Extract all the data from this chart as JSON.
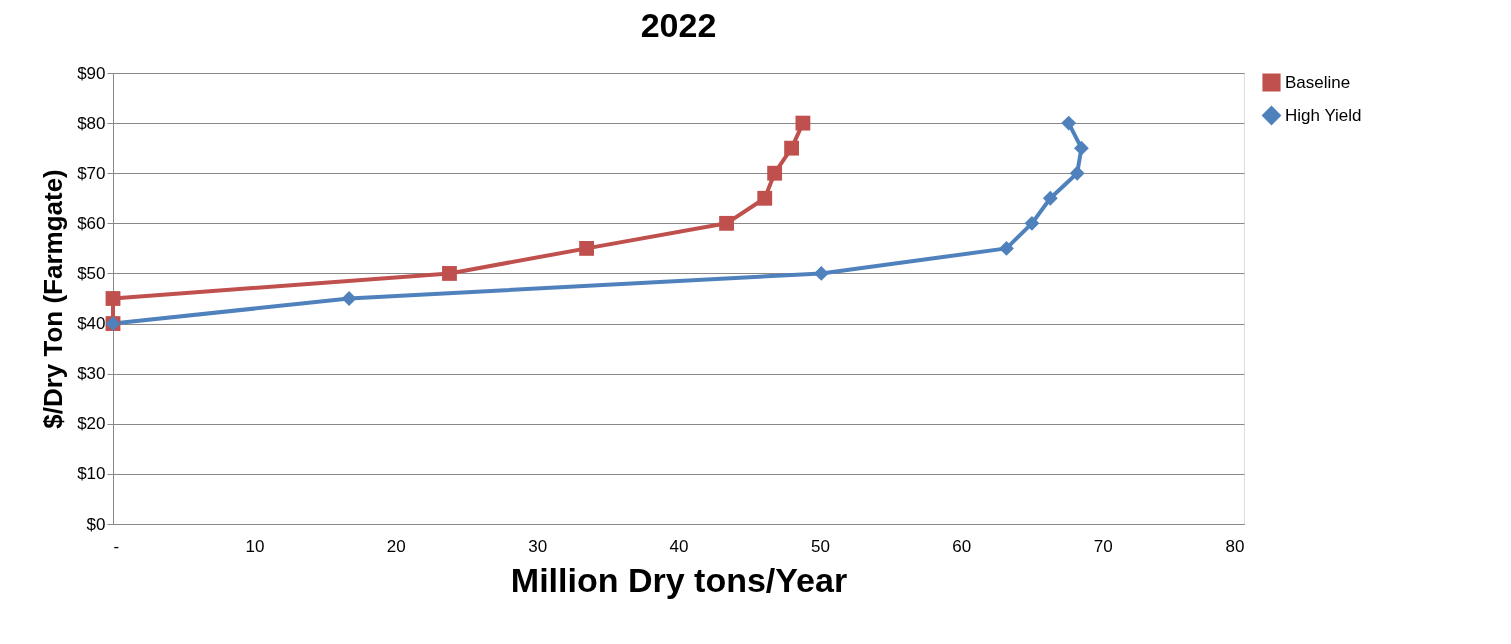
{
  "chart_data": {
    "type": "line",
    "title": "2022",
    "xlabel": "Million Dry tons/Year",
    "ylabel": "$/Dry Ton (Farmgate)",
    "series": [
      {
        "name": "Baseline",
        "color": "#c0504d",
        "marker": "square",
        "x": [
          0,
          0,
          23.8,
          33.5,
          43.4,
          46.1,
          46.8,
          48.0,
          48.8
        ],
        "values": [
          40,
          45,
          50,
          55,
          60,
          65,
          70,
          75,
          80
        ]
      },
      {
        "name": "High Yield",
        "color": "#4f81bd",
        "marker": "diamond",
        "x": [
          0,
          16.7,
          50.1,
          63.2,
          65.0,
          66.3,
          68.2,
          68.5,
          67.6
        ],
        "values": [
          40,
          45,
          50,
          55,
          60,
          65,
          70,
          75,
          80
        ]
      }
    ],
    "xlim": [
      0,
      80
    ],
    "xticks": [
      {
        "value": 0,
        "label": "-"
      },
      10,
      20,
      30,
      40,
      50,
      60,
      70,
      80
    ],
    "ylim": [
      0,
      90
    ],
    "yticks": [
      {
        "value": 0,
        "label": "$0"
      },
      {
        "value": 10,
        "label": "$10"
      },
      {
        "value": 20,
        "label": "$20"
      },
      {
        "value": 30,
        "label": "$30"
      },
      {
        "value": 40,
        "label": "$40"
      },
      {
        "value": 50,
        "label": "$50"
      },
      {
        "value": 60,
        "label": "$60"
      },
      {
        "value": 70,
        "label": "$70"
      },
      {
        "value": 80,
        "label": "$80"
      },
      {
        "value": 90,
        "label": "$90"
      }
    ],
    "grid": "y",
    "legend": "right",
    "line_style": "solid"
  }
}
